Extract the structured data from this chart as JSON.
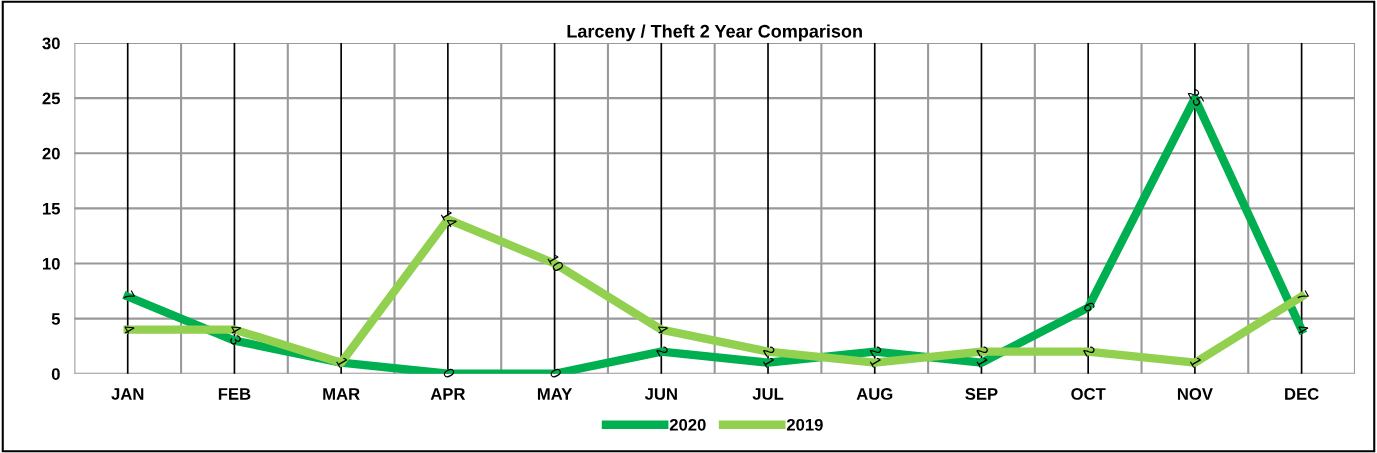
{
  "chart_data": {
    "type": "line",
    "title": "Larceny / Theft 2 Year Comparison",
    "categories": [
      "JAN",
      "FEB",
      "MAR",
      "APR",
      "MAY",
      "JUN",
      "JUL",
      "AUG",
      "SEP",
      "OCT",
      "NOV",
      "DEC"
    ],
    "series": [
      {
        "name": "2020",
        "color": "#00b050",
        "values": [
          7,
          3,
          1,
          0,
          0,
          2,
          1,
          2,
          1,
          6,
          25,
          4
        ]
      },
      {
        "name": "2019",
        "color": "#92d050",
        "values": [
          4,
          4,
          1,
          14,
          10,
          4,
          2,
          1,
          2,
          2,
          1,
          7
        ],
        "value_labels": [
          "4",
          "4",
          null,
          "14",
          "10",
          "4",
          "2",
          "1",
          "2",
          "2",
          "1",
          "7"
        ]
      }
    ],
    "ylim": [
      0,
      30
    ],
    "yticks": [
      0,
      5,
      10,
      15,
      20,
      25,
      30
    ],
    "grid": true,
    "legend": "bottom",
    "data_labels": true,
    "marker": "none",
    "line_style": "solid"
  }
}
